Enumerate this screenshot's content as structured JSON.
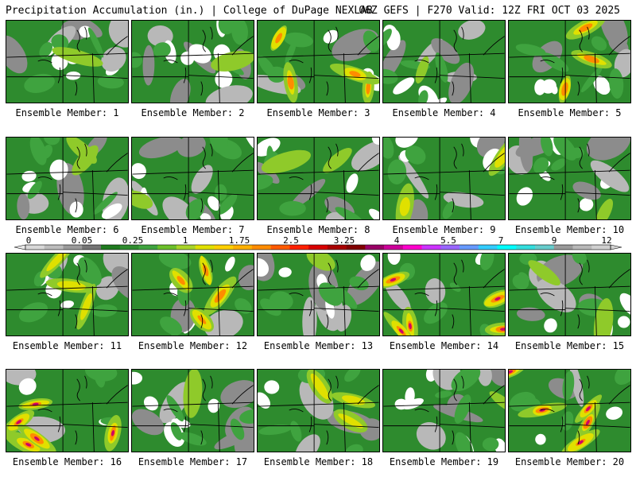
{
  "header": {
    "left": "Precipitation Accumulation (in.) | College of DuPage NEXLAB",
    "right": "06Z GEFS | F270 Valid: 12Z FRI OCT 03 2025"
  },
  "members": [
    {
      "label": "Ensemble Member: 1",
      "level": 0.6
    },
    {
      "label": "Ensemble Member: 2",
      "level": 0.7
    },
    {
      "label": "Ensemble Member: 3",
      "level": 2.0
    },
    {
      "label": "Ensemble Member: 4",
      "level": 0.5
    },
    {
      "label": "Ensemble Member: 5",
      "level": 1.6
    },
    {
      "label": "Ensemble Member: 6",
      "level": 0.8
    },
    {
      "label": "Ensemble Member: 7",
      "level": 0.6
    },
    {
      "label": "Ensemble Member: 8",
      "level": 0.9
    },
    {
      "label": "Ensemble Member: 9",
      "level": 1.2
    },
    {
      "label": "Ensemble Member: 10",
      "level": 0.6
    },
    {
      "label": "Ensemble Member: 11",
      "level": 1.5
    },
    {
      "label": "Ensemble Member: 12",
      "level": 2.0
    },
    {
      "label": "Ensemble Member: 13",
      "level": 0.7
    },
    {
      "label": "Ensemble Member: 14",
      "level": 2.4
    },
    {
      "label": "Ensemble Member: 15",
      "level": 0.8
    },
    {
      "label": "Ensemble Member: 16",
      "level": 2.6
    },
    {
      "label": "Ensemble Member: 17",
      "level": 0.5
    },
    {
      "label": "Ensemble Member: 18",
      "level": 1.3
    },
    {
      "label": "Ensemble Member: 19",
      "level": 0.7
    },
    {
      "label": "Ensemble Member: 20",
      "level": 2.6
    }
  ],
  "colorbar": {
    "ticks": [
      "0",
      "0.05",
      "0.25",
      "1",
      "1.75",
      "2.5",
      "3.25",
      "4",
      "5.5",
      "7",
      "9",
      "12"
    ],
    "colors": [
      "#d8d8d8",
      "#bcbcbc",
      "#9a9a9a",
      "#747474",
      "#1f7a1f",
      "#2e8b2e",
      "#3fa33f",
      "#6bbf2a",
      "#a8d42a",
      "#e0e000",
      "#ffd000",
      "#ffb000",
      "#ff8c00",
      "#ff5a00",
      "#ff2000",
      "#d80000",
      "#a80000",
      "#800000",
      "#990066",
      "#cc0099",
      "#ff00cc",
      "#cc33ff",
      "#9966ff",
      "#6699ff",
      "#33ccff",
      "#00ffff",
      "#33dddd",
      "#66cccc",
      "#999999",
      "#b8b8b8",
      "#d0d0d0"
    ]
  }
}
